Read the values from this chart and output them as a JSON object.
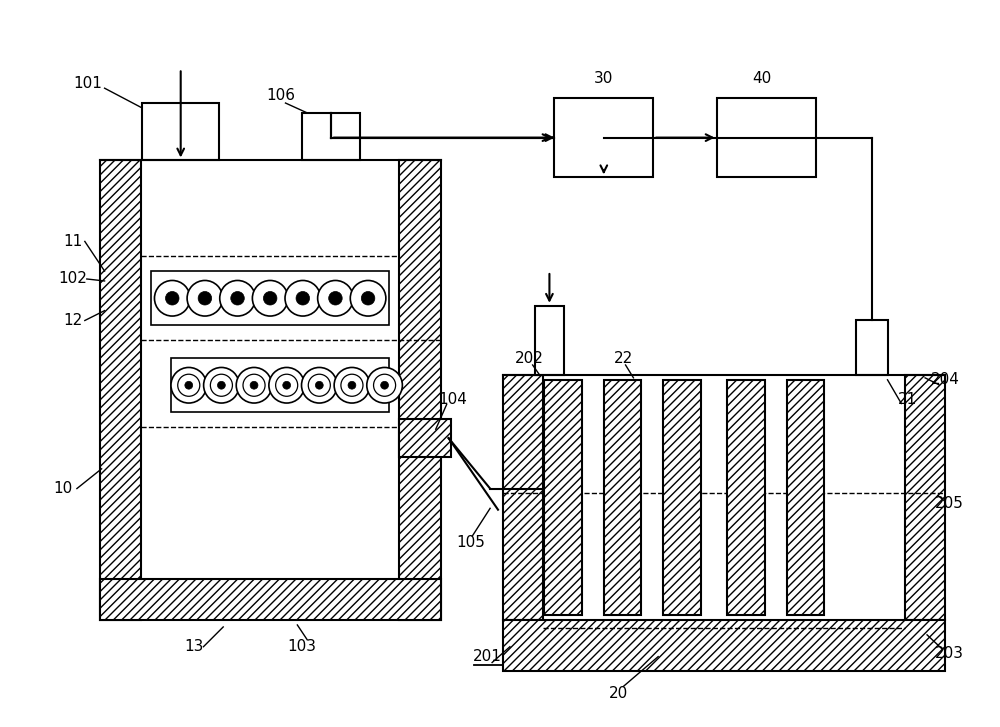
{
  "bg_color": "#ffffff",
  "line_color": "#000000",
  "figsize": [
    10.0,
    7.27
  ],
  "dpi": 100,
  "lw": 1.5,
  "lw_thin": 1.0,
  "fs": 11
}
